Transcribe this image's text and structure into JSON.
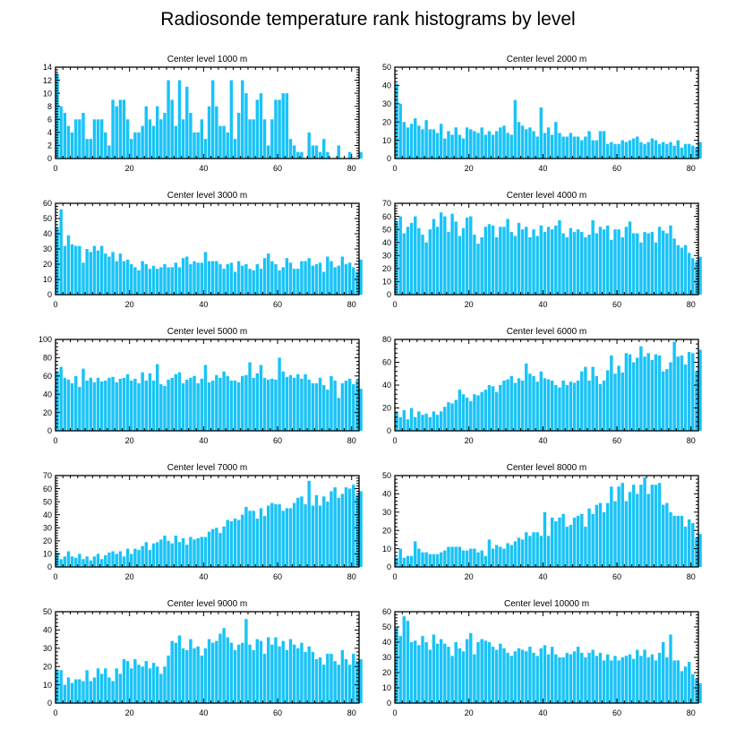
{
  "page_title": "Radiosonde temperature rank histograms by level",
  "colors": {
    "bar": "#19c3f7",
    "axis": "#000000",
    "background": "#ffffff"
  },
  "chart_data": [
    {
      "type": "bar",
      "title": "Center level 1000 m",
      "xlim": [
        0,
        82
      ],
      "ylim": [
        0,
        14
      ],
      "xticks": [
        0,
        20,
        40,
        60,
        80
      ],
      "yticks": [
        0,
        2,
        4,
        6,
        8,
        10,
        12,
        14
      ],
      "xlabel": "",
      "ylabel": "",
      "values": [
        13,
        8,
        7,
        5,
        4,
        6,
        6,
        7,
        3,
        3,
        6,
        6,
        6,
        4,
        2,
        9,
        8,
        9,
        9,
        6,
        3,
        4,
        4,
        5,
        8,
        6,
        5,
        8,
        6,
        7,
        12,
        9,
        5,
        12,
        6,
        11,
        7,
        4,
        4,
        6,
        3,
        8,
        12,
        8,
        5,
        5,
        4,
        12,
        3,
        7,
        12,
        10,
        6,
        6,
        9,
        10,
        6,
        2,
        6,
        9,
        9,
        10,
        10,
        3,
        2,
        1,
        1,
        0,
        4,
        2,
        2,
        1,
        3,
        1,
        0,
        0,
        2,
        0,
        0,
        1,
        0,
        0,
        1
      ]
    },
    {
      "type": "bar",
      "title": "Center level 2000 m",
      "xlim": [
        0,
        82
      ],
      "ylim": [
        0,
        50
      ],
      "xticks": [
        0,
        20,
        40,
        60,
        80
      ],
      "yticks": [
        0,
        10,
        20,
        30,
        40,
        50
      ],
      "xlabel": "",
      "ylabel": "",
      "values": [
        41,
        30,
        20,
        17,
        19,
        22,
        18,
        16,
        21,
        16,
        16,
        14,
        19,
        11,
        15,
        13,
        17,
        13,
        11,
        17,
        16,
        15,
        14,
        17,
        13,
        15,
        13,
        15,
        17,
        18,
        14,
        13,
        32,
        20,
        18,
        16,
        17,
        15,
        12,
        28,
        14,
        17,
        13,
        20,
        14,
        12,
        12,
        14,
        12,
        12,
        10,
        12,
        15,
        10,
        10,
        15,
        15,
        8,
        9,
        8,
        8,
        10,
        9,
        10,
        11,
        12,
        9,
        8,
        9,
        11,
        10,
        8,
        9,
        8,
        9,
        7,
        10,
        6,
        8,
        8,
        7,
        6,
        9
      ]
    },
    {
      "type": "bar",
      "title": "Center level 3000 m",
      "xlim": [
        0,
        82
      ],
      "ylim": [
        0,
        60
      ],
      "xticks": [
        0,
        20,
        40,
        60,
        80
      ],
      "yticks": [
        0,
        10,
        20,
        30,
        40,
        50,
        60
      ],
      "xlabel": "",
      "ylabel": "",
      "values": [
        44,
        56,
        32,
        39,
        33,
        32,
        32,
        21,
        30,
        28,
        32,
        29,
        32,
        27,
        25,
        28,
        22,
        27,
        22,
        23,
        20,
        18,
        16,
        22,
        20,
        17,
        19,
        17,
        18,
        20,
        18,
        18,
        21,
        18,
        24,
        25,
        20,
        22,
        21,
        21,
        28,
        22,
        22,
        22,
        20,
        17,
        20,
        21,
        15,
        22,
        19,
        20,
        17,
        16,
        20,
        17,
        24,
        27,
        22,
        20,
        16,
        18,
        24,
        21,
        17,
        17,
        22,
        22,
        24,
        19,
        20,
        21,
        15,
        25,
        22,
        18,
        19,
        25,
        20,
        21,
        18,
        15,
        23
      ]
    },
    {
      "type": "bar",
      "title": "Center level 4000 m",
      "xlim": [
        0,
        82
      ],
      "ylim": [
        0,
        70
      ],
      "xticks": [
        0,
        20,
        40,
        60,
        80
      ],
      "yticks": [
        0,
        10,
        20,
        30,
        40,
        50,
        60,
        70
      ],
      "xlabel": "",
      "ylabel": "",
      "values": [
        56,
        60,
        47,
        52,
        55,
        60,
        51,
        46,
        40,
        50,
        58,
        52,
        63,
        60,
        48,
        62,
        56,
        45,
        51,
        59,
        60,
        46,
        39,
        44,
        52,
        54,
        53,
        44,
        52,
        52,
        58,
        48,
        45,
        55,
        50,
        52,
        44,
        50,
        45,
        53,
        48,
        52,
        50,
        53,
        57,
        47,
        44,
        51,
        48,
        50,
        48,
        44,
        46,
        57,
        47,
        52,
        50,
        53,
        42,
        50,
        50,
        44,
        52,
        56,
        47,
        47,
        40,
        48,
        47,
        48,
        40,
        52,
        49,
        47,
        53,
        43,
        38,
        36,
        38,
        32,
        28,
        25,
        29
      ]
    },
    {
      "type": "bar",
      "title": "Center level 5000 m",
      "xlim": [
        0,
        82
      ],
      "ylim": [
        0,
        100
      ],
      "xticks": [
        0,
        20,
        40,
        60,
        80
      ],
      "yticks": [
        0,
        20,
        40,
        60,
        80,
        100
      ],
      "xlabel": "",
      "ylabel": "",
      "values": [
        65,
        70,
        58,
        56,
        52,
        60,
        48,
        68,
        55,
        58,
        53,
        58,
        54,
        55,
        58,
        59,
        53,
        57,
        58,
        62,
        55,
        57,
        52,
        64,
        55,
        63,
        55,
        73,
        51,
        49,
        56,
        58,
        62,
        64,
        52,
        56,
        58,
        60,
        52,
        57,
        72,
        53,
        55,
        61,
        58,
        65,
        60,
        55,
        55,
        53,
        60,
        61,
        75,
        58,
        63,
        72,
        58,
        56,
        57,
        56,
        80,
        65,
        59,
        61,
        58,
        62,
        57,
        62,
        56,
        52,
        52,
        58,
        50,
        45,
        60,
        55,
        36,
        52,
        55,
        57,
        51,
        55,
        46
      ]
    },
    {
      "type": "bar",
      "title": "Center level 6000 m",
      "xlim": [
        0,
        82
      ],
      "ylim": [
        0,
        80
      ],
      "xticks": [
        0,
        20,
        40,
        60,
        80
      ],
      "yticks": [
        0,
        20,
        40,
        60,
        80
      ],
      "xlabel": "",
      "ylabel": "",
      "values": [
        17,
        12,
        18,
        10,
        20,
        12,
        17,
        14,
        15,
        12,
        17,
        14,
        17,
        21,
        25,
        24,
        27,
        36,
        32,
        29,
        26,
        32,
        31,
        34,
        36,
        40,
        39,
        34,
        40,
        44,
        45,
        48,
        42,
        46,
        44,
        59,
        50,
        48,
        43,
        52,
        46,
        45,
        44,
        40,
        38,
        44,
        40,
        43,
        42,
        44,
        52,
        56,
        44,
        56,
        48,
        41,
        44,
        53,
        66,
        50,
        57,
        51,
        68,
        67,
        60,
        64,
        74,
        65,
        68,
        62,
        67,
        66,
        52,
        54,
        60,
        78,
        65,
        66,
        58,
        69,
        68,
        52,
        71
      ]
    },
    {
      "type": "bar",
      "title": "Center level 7000 m",
      "xlim": [
        0,
        82
      ],
      "ylim": [
        0,
        70
      ],
      "xticks": [
        0,
        20,
        40,
        60,
        80
      ],
      "yticks": [
        0,
        10,
        20,
        30,
        40,
        50,
        60,
        70
      ],
      "xlabel": "",
      "ylabel": "",
      "values": [
        11,
        6,
        8,
        12,
        8,
        7,
        10,
        6,
        8,
        5,
        8,
        10,
        6,
        9,
        11,
        12,
        10,
        12,
        8,
        14,
        10,
        14,
        13,
        16,
        19,
        13,
        18,
        19,
        21,
        24,
        20,
        18,
        24,
        19,
        22,
        17,
        23,
        21,
        22,
        23,
        23,
        27,
        29,
        30,
        26,
        31,
        36,
        35,
        37,
        36,
        40,
        46,
        43,
        43,
        37,
        45,
        39,
        47,
        49,
        48,
        48,
        43,
        45,
        45,
        49,
        53,
        54,
        48,
        66,
        47,
        55,
        47,
        54,
        50,
        58,
        61,
        53,
        56,
        61,
        60,
        63,
        55,
        58
      ]
    },
    {
      "type": "bar",
      "title": "Center level 8000 m",
      "xlim": [
        0,
        82
      ],
      "ylim": [
        0,
        50
      ],
      "xticks": [
        0,
        20,
        40,
        60,
        80
      ],
      "yticks": [
        0,
        10,
        20,
        30,
        40,
        50
      ],
      "xlabel": "",
      "ylabel": "",
      "values": [
        5,
        10,
        5,
        6,
        6,
        14,
        10,
        8,
        8,
        7,
        7,
        7,
        8,
        9,
        11,
        11,
        11,
        11,
        9,
        9,
        10,
        10,
        8,
        9,
        6,
        15,
        10,
        12,
        11,
        10,
        13,
        12,
        14,
        16,
        15,
        19,
        17,
        19,
        19,
        17,
        30,
        17,
        27,
        25,
        27,
        29,
        22,
        23,
        27,
        28,
        29,
        22,
        32,
        29,
        34,
        35,
        30,
        35,
        44,
        36,
        44,
        46,
        36,
        41,
        45,
        40,
        45,
        49,
        40,
        45,
        45,
        46,
        34,
        35,
        30,
        28,
        28,
        28,
        22,
        26,
        24,
        16,
        18
      ]
    },
    {
      "type": "bar",
      "title": "Center level 9000 m",
      "xlim": [
        0,
        82
      ],
      "ylim": [
        0,
        50
      ],
      "xticks": [
        0,
        20,
        40,
        60,
        80
      ],
      "yticks": [
        0,
        10,
        20,
        30,
        40,
        50
      ],
      "xlabel": "",
      "ylabel": "",
      "values": [
        18,
        18,
        10,
        14,
        11,
        13,
        13,
        12,
        18,
        12,
        14,
        19,
        16,
        19,
        14,
        12,
        19,
        16,
        24,
        23,
        19,
        24,
        21,
        20,
        23,
        19,
        22,
        20,
        16,
        20,
        26,
        34,
        33,
        37,
        30,
        29,
        35,
        30,
        31,
        26,
        30,
        35,
        33,
        34,
        38,
        41,
        36,
        33,
        29,
        32,
        33,
        46,
        32,
        29,
        35,
        34,
        27,
        36,
        32,
        36,
        31,
        34,
        29,
        35,
        32,
        30,
        33,
        28,
        31,
        28,
        24,
        25,
        21,
        27,
        27,
        23,
        21,
        29,
        24,
        21,
        27,
        23,
        24
      ]
    },
    {
      "type": "bar",
      "title": "Center level 10000 m",
      "xlim": [
        0,
        82
      ],
      "ylim": [
        0,
        60
      ],
      "xticks": [
        0,
        20,
        40,
        60,
        80
      ],
      "yticks": [
        0,
        10,
        20,
        30,
        40,
        50,
        60
      ],
      "xlabel": "",
      "ylabel": "",
      "values": [
        50,
        44,
        57,
        54,
        40,
        41,
        38,
        44,
        40,
        35,
        45,
        39,
        42,
        39,
        37,
        31,
        40,
        36,
        34,
        42,
        46,
        32,
        40,
        42,
        41,
        40,
        37,
        35,
        39,
        36,
        33,
        31,
        34,
        36,
        35,
        34,
        37,
        33,
        31,
        36,
        38,
        32,
        37,
        32,
        30,
        30,
        33,
        32,
        34,
        37,
        33,
        30,
        33,
        35,
        31,
        33,
        28,
        32,
        28,
        31,
        28,
        30,
        31,
        32,
        29,
        35,
        31,
        35,
        30,
        32,
        28,
        33,
        40,
        30,
        45,
        28,
        28,
        21,
        24,
        27,
        19,
        16,
        13
      ]
    }
  ]
}
